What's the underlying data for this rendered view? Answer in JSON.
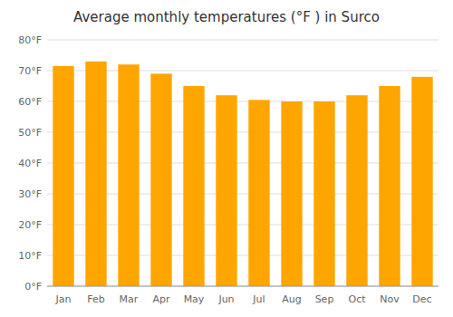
{
  "chart_data": {
    "type": "bar",
    "title": "Average monthly temperatures (°F ) in Surco",
    "categories": [
      "Jan",
      "Feb",
      "Mar",
      "Apr",
      "May",
      "Jun",
      "Jul",
      "Aug",
      "Sep",
      "Oct",
      "Nov",
      "Dec"
    ],
    "values": [
      71.5,
      73.0,
      72.0,
      69.0,
      65.0,
      62.0,
      60.5,
      60.0,
      60.0,
      62.0,
      65.0,
      68.0
    ],
    "color": "#FFA500",
    "ylim": [
      0,
      80
    ],
    "yticks": [
      {
        "value": 0,
        "label": "0°F"
      },
      {
        "value": 10,
        "label": "10°F"
      },
      {
        "value": 20,
        "label": "20°F"
      },
      {
        "value": 30,
        "label": "30°F"
      },
      {
        "value": 40,
        "label": "40°F"
      },
      {
        "value": 50,
        "label": "50°F"
      },
      {
        "value": 60,
        "label": "60°F"
      },
      {
        "value": 70,
        "label": "70°F"
      },
      {
        "value": 80,
        "label": "80°F"
      }
    ],
    "grid": true
  }
}
